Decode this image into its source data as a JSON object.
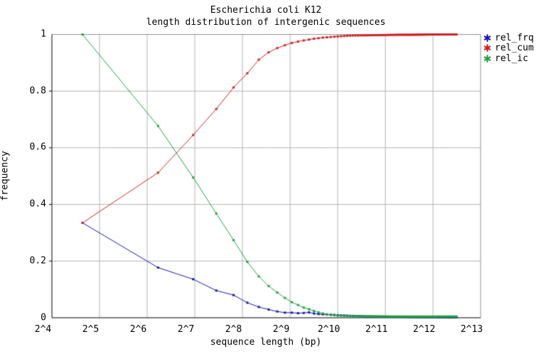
{
  "title": {
    "line1": "Escherichia coli K12",
    "line2": "length distribution of intergenic sequences"
  },
  "axes": {
    "x_label": "sequence length (bp)",
    "y_label": "frequency",
    "x_tick_labels": [
      "2^4",
      "2^5",
      "2^6",
      "2^7",
      "2^8",
      "2^9",
      "2^10",
      "2^11",
      "2^12",
      "2^13"
    ],
    "x_tick_log2": [
      4,
      5,
      6,
      7,
      8,
      9,
      10,
      11,
      12,
      13
    ],
    "y_tick_labels": [
      "1",
      "0.8",
      "0.6",
      "0.4",
      "0.2",
      "0"
    ],
    "y_tick_values": [
      1,
      0.8,
      0.6,
      0.4,
      0.2,
      0
    ],
    "grid": true
  },
  "legend": {
    "position": "outside-top-right",
    "items": [
      {
        "label": "rel_frq",
        "color": "#1515b4"
      },
      {
        "label": "rel_cum",
        "color": "#d41a1a"
      },
      {
        "label": "rel_ic",
        "color": "#1ea03c"
      }
    ]
  },
  "colors": {
    "background": "#ffffff",
    "grid": "#b2b2b2",
    "frame": "#909090",
    "axis": "#000000"
  },
  "chart_data": {
    "type": "line",
    "title": "Escherichia coli K12 - length distribution of intergenic sequences",
    "xlabel": "sequence length (bp)",
    "ylabel": "frequency",
    "x_scale": "log2",
    "xlim_log2": [
      4,
      13
    ],
    "ylim": [
      0,
      1
    ],
    "grid": true,
    "bins": {
      "start": 25,
      "step": 50,
      "end": 5775
    },
    "series": [
      {
        "name": "rel_frq",
        "color": "#1515b4",
        "anchors": [
          [
            25,
            0.335
          ],
          [
            75,
            0.177
          ],
          [
            125,
            0.136
          ],
          [
            175,
            0.096
          ],
          [
            225,
            0.08
          ],
          [
            275,
            0.053
          ],
          [
            325,
            0.038
          ],
          [
            375,
            0.029
          ],
          [
            425,
            0.022
          ],
          [
            475,
            0.018
          ],
          [
            525,
            0.018
          ],
          [
            575,
            0.016
          ],
          [
            625,
            0.017
          ],
          [
            675,
            0.019
          ],
          [
            725,
            0.015
          ],
          [
            775,
            0.013
          ],
          [
            825,
            0.012
          ],
          [
            925,
            0.011
          ],
          [
            1025,
            0.009
          ],
          [
            1225,
            0.007
          ],
          [
            1525,
            0.005
          ],
          [
            2025,
            0.004
          ],
          [
            3025,
            0.003
          ],
          [
            4025,
            0.003
          ],
          [
            5025,
            0.0025
          ],
          [
            5775,
            0.0025
          ]
        ]
      },
      {
        "name": "rel_cum",
        "color": "#cc2222",
        "anchors": [
          [
            25,
            0.335
          ],
          [
            75,
            0.512
          ],
          [
            125,
            0.645
          ],
          [
            175,
            0.737
          ],
          [
            225,
            0.813
          ],
          [
            275,
            0.863
          ],
          [
            325,
            0.911
          ],
          [
            375,
            0.937
          ],
          [
            425,
            0.952
          ],
          [
            475,
            0.962
          ],
          [
            525,
            0.97
          ],
          [
            575,
            0.975
          ],
          [
            625,
            0.979
          ],
          [
            675,
            0.982
          ],
          [
            725,
            0.985
          ],
          [
            775,
            0.987
          ],
          [
            825,
            0.989
          ],
          [
            925,
            0.991
          ],
          [
            1025,
            0.993
          ],
          [
            1225,
            0.996
          ],
          [
            1525,
            0.997
          ],
          [
            2025,
            0.998
          ],
          [
            2525,
            0.999
          ],
          [
            3025,
            0.999
          ],
          [
            4025,
            1.0
          ],
          [
            5025,
            1.0
          ],
          [
            5775,
            1.0
          ]
        ]
      },
      {
        "name": "rel_ic",
        "color": "#1ea03c",
        "anchors": [
          [
            25,
            1.0
          ],
          [
            75,
            0.677
          ],
          [
            125,
            0.495
          ],
          [
            175,
            0.368
          ],
          [
            225,
            0.274
          ],
          [
            275,
            0.197
          ],
          [
            325,
            0.146
          ],
          [
            375,
            0.112
          ],
          [
            425,
            0.089
          ],
          [
            475,
            0.07
          ],
          [
            525,
            0.055
          ],
          [
            575,
            0.045
          ],
          [
            625,
            0.036
          ],
          [
            675,
            0.03
          ],
          [
            725,
            0.024
          ],
          [
            775,
            0.019
          ],
          [
            825,
            0.015
          ],
          [
            875,
            0.012
          ],
          [
            925,
            0.01
          ],
          [
            1025,
            0.0075
          ],
          [
            1225,
            0.006
          ],
          [
            1525,
            0.005
          ],
          [
            2025,
            0.0045
          ],
          [
            3025,
            0.004
          ],
          [
            4025,
            0.004
          ],
          [
            5025,
            0.004
          ],
          [
            5775,
            0.004
          ]
        ]
      }
    ]
  }
}
